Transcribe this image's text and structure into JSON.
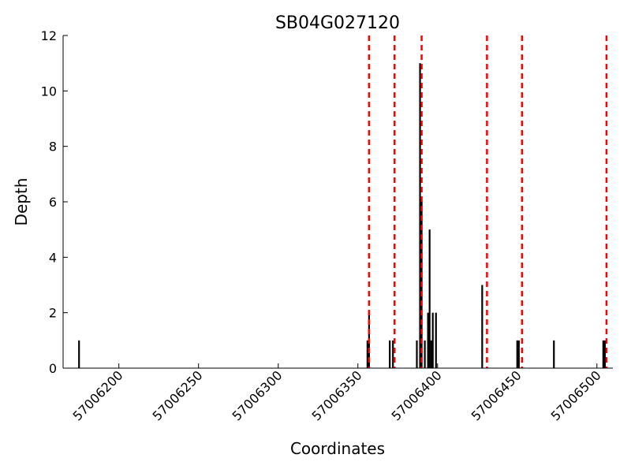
{
  "chart_data": {
    "type": "bar",
    "title": "SB04G027120",
    "xlabel": "Coordinates",
    "ylabel": "Depth",
    "xlim": [
      57006165,
      57006510
    ],
    "ylim": [
      0,
      12
    ],
    "xticks": [
      57006200,
      57006250,
      57006300,
      57006350,
      57006400,
      57006450,
      57006500
    ],
    "yticks": [
      0,
      2,
      4,
      6,
      8,
      10,
      12
    ],
    "grid": false,
    "bar_color": "#000000",
    "series": [
      {
        "x": [
          57006175,
          57006356,
          57006357,
          57006370,
          57006372,
          57006387,
          57006389,
          57006390,
          57006392,
          57006394,
          57006395,
          57006396,
          57006397,
          57006399,
          57006428,
          57006450,
          57006451,
          57006473,
          57006504,
          57006505
        ],
        "values": [
          1,
          1,
          2,
          1,
          1,
          1,
          11,
          6,
          1,
          2,
          5,
          1,
          2,
          2,
          3,
          1,
          1,
          1,
          1,
          1
        ]
      }
    ],
    "vlines": {
      "color": "#ff0000",
      "style": "dashed",
      "x": [
        57006357,
        57006373,
        57006390,
        57006431,
        57006453,
        57006506
      ]
    }
  }
}
